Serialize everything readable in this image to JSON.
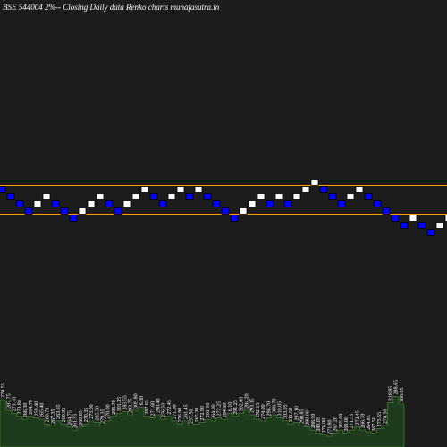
{
  "title": "BSE 544004  2%--  Closing Daily data  Renko  charts munafasutra.in",
  "colors": {
    "background": "#000000",
    "panel": "#1c1c1c",
    "up_brick": "#ffffff",
    "down_brick": "#0000ff",
    "brick_outline": "#000000",
    "reference_line": "#ff9900",
    "volume_fill": "#1e3b1e",
    "volume_stroke": "#3c7a2c",
    "volume_label": "#ffffff"
  },
  "chart_data": {
    "type": "renko",
    "bricks": [
      {
        "level": 0,
        "dir": "down"
      },
      {
        "level": -1,
        "dir": "down"
      },
      {
        "level": -2,
        "dir": "down"
      },
      {
        "level": -3,
        "dir": "down"
      },
      {
        "level": -2,
        "dir": "up"
      },
      {
        "level": -1,
        "dir": "up"
      },
      {
        "level": -2,
        "dir": "down"
      },
      {
        "level": -3,
        "dir": "down"
      },
      {
        "level": -4,
        "dir": "down"
      },
      {
        "level": -3,
        "dir": "up"
      },
      {
        "level": -2,
        "dir": "up"
      },
      {
        "level": -1,
        "dir": "up"
      },
      {
        "level": -2,
        "dir": "down"
      },
      {
        "level": -3,
        "dir": "down"
      },
      {
        "level": -2,
        "dir": "up"
      },
      {
        "level": -1,
        "dir": "up"
      },
      {
        "level": 0,
        "dir": "up"
      },
      {
        "level": -1,
        "dir": "down"
      },
      {
        "level": -2,
        "dir": "down"
      },
      {
        "level": -1,
        "dir": "up"
      },
      {
        "level": 0,
        "dir": "up"
      },
      {
        "level": -1,
        "dir": "down"
      },
      {
        "level": 0,
        "dir": "up"
      },
      {
        "level": -1,
        "dir": "down"
      },
      {
        "level": -2,
        "dir": "down"
      },
      {
        "level": -3,
        "dir": "down"
      },
      {
        "level": -4,
        "dir": "down"
      },
      {
        "level": -3,
        "dir": "up"
      },
      {
        "level": -2,
        "dir": "up"
      },
      {
        "level": -1,
        "dir": "up"
      },
      {
        "level": -2,
        "dir": "down"
      },
      {
        "level": -1,
        "dir": "up"
      },
      {
        "level": -2,
        "dir": "down"
      },
      {
        "level": -1,
        "dir": "up"
      },
      {
        "level": 0,
        "dir": "up"
      },
      {
        "level": 1,
        "dir": "up"
      },
      {
        "level": 0,
        "dir": "down"
      },
      {
        "level": -1,
        "dir": "down"
      },
      {
        "level": -2,
        "dir": "down"
      },
      {
        "level": -1,
        "dir": "up"
      },
      {
        "level": 0,
        "dir": "up"
      },
      {
        "level": -1,
        "dir": "down"
      },
      {
        "level": -2,
        "dir": "down"
      },
      {
        "level": -3,
        "dir": "down"
      },
      {
        "level": -4,
        "dir": "down"
      },
      {
        "level": -5,
        "dir": "down"
      },
      {
        "level": -4,
        "dir": "up"
      },
      {
        "level": -5,
        "dir": "down"
      },
      {
        "level": -6,
        "dir": "down"
      },
      {
        "level": -5,
        "dir": "up"
      },
      {
        "level": -4,
        "dir": "up"
      },
      {
        "level": -5,
        "dir": "down"
      },
      {
        "level": -6,
        "dir": "down"
      },
      {
        "level": -5,
        "dir": "up"
      },
      {
        "level": -6,
        "dir": "down"
      },
      {
        "level": -5,
        "dir": "up"
      },
      {
        "level": -4,
        "dir": "up"
      },
      {
        "level": -3,
        "dir": "up"
      },
      {
        "level": -4,
        "dir": "down"
      }
    ],
    "reference_lines": [
      1,
      -3
    ],
    "volume": [
      {
        "value": 62,
        "label": "274.55"
      },
      {
        "value": 48,
        "label": "287.75"
      },
      {
        "value": 44,
        "label": "271.10"
      },
      {
        "value": 40,
        "label": "270.80"
      },
      {
        "value": 36,
        "label": "266.30"
      },
      {
        "value": 40,
        "label": "264.70"
      },
      {
        "value": 38,
        "label": "259.40"
      },
      {
        "value": 36,
        "label": "265.40"
      },
      {
        "value": 30,
        "label": "260.75"
      },
      {
        "value": 28,
        "label": "267.35"
      },
      {
        "value": 34,
        "label": "263.65"
      },
      {
        "value": 30,
        "label": "260.95"
      },
      {
        "value": 26,
        "label": "264.75"
      },
      {
        "value": 22,
        "label": "261.95"
      },
      {
        "value": 26,
        "label": "260.85"
      },
      {
        "value": 30,
        "label": "270.35"
      },
      {
        "value": 34,
        "label": "273.00"
      },
      {
        "value": 32,
        "label": "285.50"
      },
      {
        "value": 28,
        "label": "279.35"
      },
      {
        "value": 34,
        "label": "270.00"
      },
      {
        "value": 40,
        "label": "285.70"
      },
      {
        "value": 44,
        "label": "301.35"
      },
      {
        "value": 46,
        "label": "285.55"
      },
      {
        "value": 42,
        "label": "293.75"
      },
      {
        "value": 48,
        "label": "309.80"
      },
      {
        "value": 52,
        "label": "6.00"
      },
      {
        "value": 40,
        "label": "287.65"
      },
      {
        "value": 38,
        "label": "271.60"
      },
      {
        "value": 42,
        "label": "290.40"
      },
      {
        "value": 36,
        "label": "276.50"
      },
      {
        "value": 40,
        "label": "272.45"
      },
      {
        "value": 34,
        "label": "271.00"
      },
      {
        "value": 30,
        "label": "276.80"
      },
      {
        "value": 34,
        "label": "261.45"
      },
      {
        "value": 28,
        "label": "257.50"
      },
      {
        "value": 30,
        "label": "265.20"
      },
      {
        "value": 32,
        "label": "272.90"
      },
      {
        "value": 36,
        "label": "261.10"
      },
      {
        "value": 34,
        "label": "264.00"
      },
      {
        "value": 38,
        "label": "272.25"
      },
      {
        "value": 36,
        "label": "284.90"
      },
      {
        "value": 44,
        "label": "6.10"
      },
      {
        "value": 40,
        "label": "291.25"
      },
      {
        "value": 44,
        "label": "302.00"
      },
      {
        "value": 48,
        "label": "284.20"
      },
      {
        "value": 42,
        "label": "293.15"
      },
      {
        "value": 36,
        "label": "292.15"
      },
      {
        "value": 34,
        "label": "274.00"
      },
      {
        "value": 38,
        "label": "296.70"
      },
      {
        "value": 42,
        "label": "308.70"
      },
      {
        "value": 38,
        "label": "310.05"
      },
      {
        "value": 34,
        "label": "303.05"
      },
      {
        "value": 30,
        "label": "311.50"
      },
      {
        "value": 32,
        "label": "297.10"
      },
      {
        "value": 28,
        "label": "290.85"
      },
      {
        "value": 26,
        "label": "290.00"
      },
      {
        "value": 22,
        "label": "288.90"
      },
      {
        "value": 18,
        "label": "280.05"
      },
      {
        "value": 16,
        "label": "276.00"
      },
      {
        "value": 14,
        "label": "271.80"
      },
      {
        "value": 18,
        "label": "267.20"
      },
      {
        "value": 22,
        "label": "265.00"
      },
      {
        "value": 18,
        "label": "269.00"
      },
      {
        "value": 22,
        "label": "271.55"
      },
      {
        "value": 26,
        "label": "272.45"
      },
      {
        "value": 22,
        "label": "266.70"
      },
      {
        "value": 20,
        "label": "264.85"
      },
      {
        "value": 18,
        "label": "267.50"
      },
      {
        "value": 24,
        "label": "275.55"
      },
      {
        "value": 28,
        "label": "278.50"
      },
      {
        "value": 58,
        "label": "318.85"
      },
      {
        "value": 66,
        "label": "288.65"
      },
      {
        "value": 56,
        "label": "300.05"
      }
    ]
  }
}
